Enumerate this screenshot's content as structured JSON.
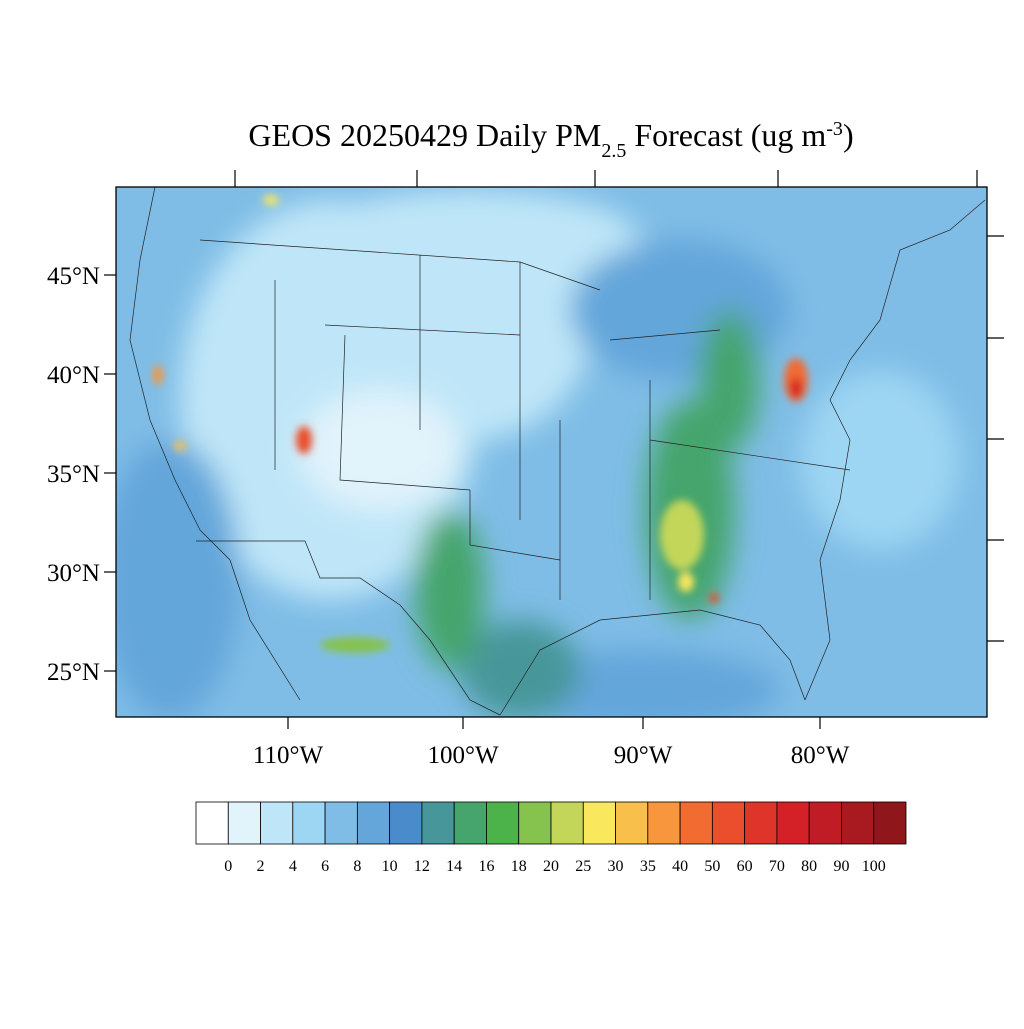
{
  "title": {
    "main": "GEOS 20250429 Daily PM",
    "sub": "2.5",
    "rest": " Forecast (ug m",
    "sup": "-3",
    "end": ")"
  },
  "lat_labels": [
    "45°N",
    "40°N",
    "35°N",
    "30°N",
    "25°N"
  ],
  "lon_labels": [
    "110°W",
    "100°W",
    "90°W",
    "80°W"
  ],
  "colorbar": {
    "levels": [
      0,
      2,
      4,
      6,
      8,
      10,
      12,
      14,
      16,
      18,
      20,
      25,
      30,
      35,
      40,
      50,
      60,
      70,
      80,
      90,
      100
    ],
    "colors": [
      "#ffffff",
      "#e1f3fb",
      "#bfe6f8",
      "#9dd6f3",
      "#7fbde6",
      "#64a6da",
      "#4a8ccb",
      "#47979a",
      "#45a56c",
      "#4cb34a",
      "#86c24e",
      "#c3d65a",
      "#f9e75d",
      "#f8bf4b",
      "#f7963d",
      "#f26b30",
      "#ea4e2c",
      "#df3429",
      "#d42128",
      "#bf1c25",
      "#a81a20",
      "#8f161b"
    ]
  }
}
